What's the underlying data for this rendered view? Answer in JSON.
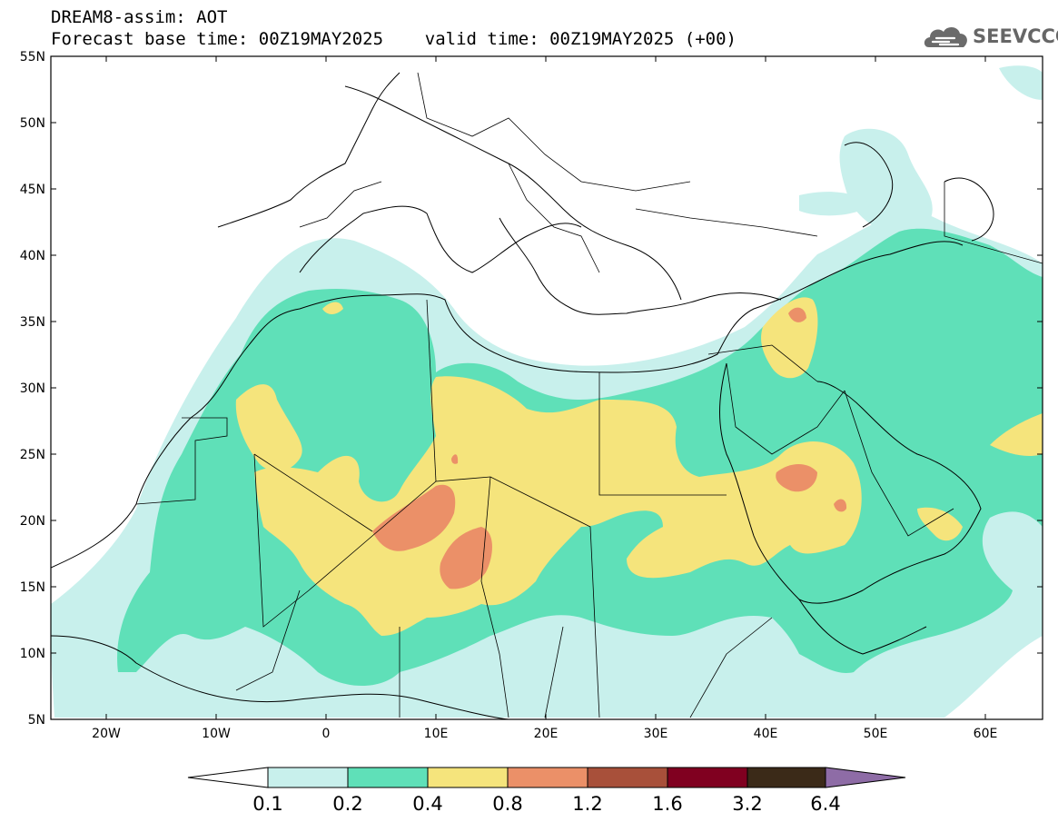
{
  "title": {
    "line1": "DREAM8-assim: AOT",
    "line2": "Forecast base time: 00Z19MAY2025    valid time: 00Z19MAY2025 (+00)"
  },
  "logo": {
    "text": "SEEVCCC",
    "icon": "cloud-icon"
  },
  "map": {
    "lat_labels": [
      "55N",
      "50N",
      "45N",
      "40N",
      "35N",
      "30N",
      "25N",
      "20N",
      "15N",
      "10N",
      "5N"
    ],
    "lon_labels": [
      "20W",
      "10W",
      "0",
      "10E",
      "20E",
      "30E",
      "40E",
      "50E",
      "60E"
    ],
    "lat_range": [
      5,
      55
    ],
    "lon_range": [
      -25,
      65
    ],
    "fields": "aerosol optical thickness shaded over North Africa, Middle East and Arabian Peninsula"
  },
  "legend": {
    "labels": [
      "0.1",
      "0.2",
      "0.4",
      "0.8",
      "1.2",
      "1.6",
      "3.2",
      "6.4"
    ],
    "colors": [
      "#ffffff",
      "#c8f0ec",
      "#5fe0b8",
      "#f5e47c",
      "#eb9068",
      "#a8503a",
      "#800020",
      "#3b2a18",
      "#8e6ca6"
    ]
  }
}
